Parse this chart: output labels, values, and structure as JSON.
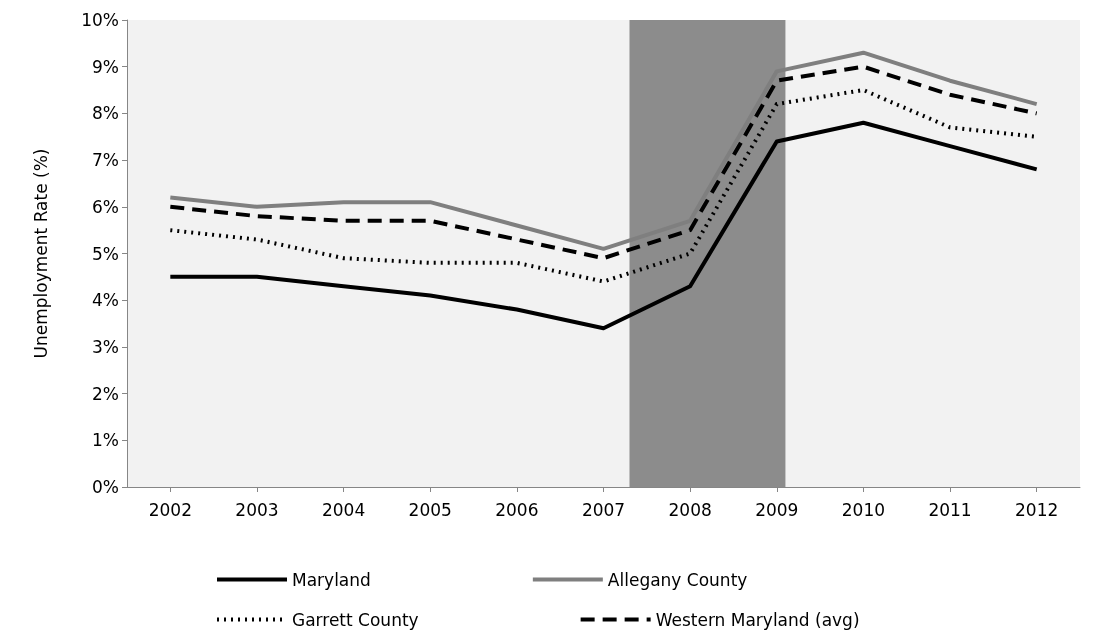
{
  "chart_data": {
    "type": "line",
    "ylabel": "Unemployment Rate (%)",
    "x": [
      2002,
      2003,
      2004,
      2005,
      2006,
      2007,
      2008,
      2009,
      2010,
      2011,
      2012
    ],
    "xlim": [
      2001.5,
      2012.5
    ],
    "xticks": [
      2002,
      2003,
      2004,
      2005,
      2006,
      2007,
      2008,
      2009,
      2010,
      2011,
      2012
    ],
    "ylim": [
      0,
      10
    ],
    "yticks": [
      {
        "value": 0,
        "label": "0%"
      },
      {
        "value": 1,
        "label": "1%"
      },
      {
        "value": 2,
        "label": "2%"
      },
      {
        "value": 3,
        "label": "3%"
      },
      {
        "value": 4,
        "label": "4%"
      },
      {
        "value": 5,
        "label": "5%"
      },
      {
        "value": 6,
        "label": "6%"
      },
      {
        "value": 7,
        "label": "7%"
      },
      {
        "value": 8,
        "label": "8%"
      },
      {
        "value": 9,
        "label": "9%"
      },
      {
        "value": 10,
        "label": "10%"
      }
    ],
    "grid": false,
    "legend": "bottom",
    "marker": "none",
    "bands": [
      {
        "axis": "x",
        "from": 2007.3,
        "to": 2009.1,
        "color": "#8c8c8c"
      }
    ],
    "series": [
      {
        "name": "Maryland",
        "color": "#000000",
        "line_style": "solid",
        "values": [
          4.5,
          4.5,
          4.3,
          4.1,
          3.8,
          3.4,
          4.3,
          7.4,
          7.8,
          7.3,
          6.8
        ]
      },
      {
        "name": "Allegany County",
        "color": "#7f7f7f",
        "line_style": "solid",
        "values": [
          6.2,
          6.0,
          6.1,
          6.1,
          5.6,
          5.1,
          5.7,
          8.9,
          9.3,
          8.7,
          8.2
        ]
      },
      {
        "name": "Garrett County",
        "color": "#000000",
        "line_style": "dotted",
        "values": [
          5.5,
          5.3,
          4.9,
          4.8,
          4.8,
          4.4,
          5.0,
          8.2,
          8.5,
          7.7,
          7.5
        ]
      },
      {
        "name": "Western Maryland (avg)",
        "color": "#000000",
        "line_style": "dashed",
        "values": [
          6.0,
          5.8,
          5.7,
          5.7,
          5.3,
          4.9,
          5.5,
          8.7,
          9.0,
          8.4,
          8.0
        ]
      }
    ]
  }
}
